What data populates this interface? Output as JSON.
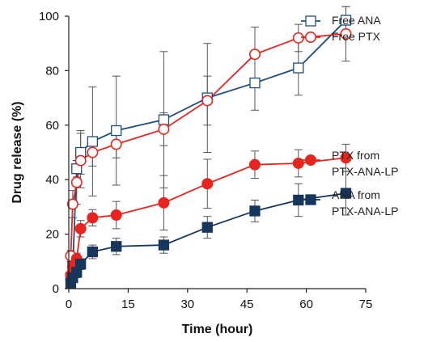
{
  "chart_data": {
    "type": "line",
    "title": "",
    "xlabel": "Time (hour)",
    "ylabel": "Drug release (%)",
    "xlim": [
      0,
      75
    ],
    "ylim": [
      0,
      100
    ],
    "x_ticks": [
      0,
      15,
      30,
      45,
      60,
      75
    ],
    "y_ticks": [
      0,
      20,
      40,
      60,
      80,
      100
    ],
    "grid": false,
    "series": [
      {
        "name": "Free ANA",
        "color": "#1f4e79",
        "marker": "square",
        "filled": false,
        "x": [
          0,
          0.5,
          1,
          2,
          3,
          6,
          12,
          24,
          35,
          47,
          58,
          70
        ],
        "y": [
          0,
          4,
          8,
          44,
          50,
          54,
          58,
          62,
          70,
          75.5,
          81,
          98.5
        ],
        "err": [
          0,
          1,
          2,
          3,
          8,
          20,
          20,
          25,
          20,
          10,
          10,
          5
        ]
      },
      {
        "name": "Free PTX",
        "color": "#e8241f",
        "marker": "circle",
        "filled": false,
        "x": [
          0,
          0.5,
          1,
          2,
          3,
          6,
          12,
          24,
          35,
          47,
          58,
          70
        ],
        "y": [
          0,
          12,
          31,
          39,
          47,
          50,
          53,
          58.5,
          69,
          86,
          92,
          93.5
        ],
        "err": [
          0,
          2,
          5,
          8,
          10,
          5,
          5,
          6,
          9,
          10,
          5,
          10
        ]
      },
      {
        "name": "PTX from PTX-ANA-LP",
        "color": "#e8241f",
        "marker": "circle",
        "filled": true,
        "x": [
          0,
          0.5,
          1,
          2,
          3,
          6,
          12,
          24,
          35,
          47,
          58,
          70
        ],
        "y": [
          0,
          5,
          8,
          11,
          22,
          26,
          27,
          31.5,
          38.5,
          45.5,
          46,
          48
        ],
        "err": [
          0,
          1,
          2,
          2,
          3,
          3,
          5,
          10,
          9,
          5,
          5,
          5
        ]
      },
      {
        "name": "ANA from PTX-ANA-LP",
        "color": "#16365c",
        "marker": "square",
        "filled": true,
        "x": [
          0,
          0.5,
          1,
          2,
          3,
          6,
          12,
          24,
          35,
          47,
          58,
          70
        ],
        "y": [
          0,
          2,
          4,
          6,
          9,
          13.5,
          15.5,
          16,
          22.5,
          28.5,
          32.5,
          35
        ],
        "err": [
          0,
          1,
          1,
          2,
          2,
          2.5,
          3,
          3,
          4,
          4,
          6,
          8
        ]
      }
    ],
    "legend": [
      {
        "series": 0,
        "lines": [
          "Free ANA"
        ]
      },
      {
        "series": 1,
        "lines": [
          "Free PTX"
        ]
      },
      {
        "series": 2,
        "lines": [
          "PTX from",
          "PTX-ANA-LP"
        ]
      },
      {
        "series": 3,
        "lines": [
          "ANA from",
          "PTX-ANA-LP"
        ]
      }
    ]
  }
}
